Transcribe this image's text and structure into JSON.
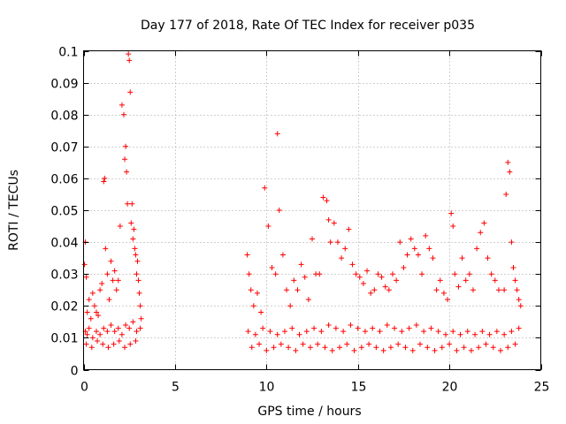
{
  "chart_data": {
    "type": "scatter",
    "title": "Day 177 of 2018, Rate Of TEC Index for receiver p035",
    "xlabel": "GPS time / hours",
    "ylabel": "ROTI / TECUs",
    "xlim": [
      0,
      25
    ],
    "ylim": [
      0,
      0.1
    ],
    "x_ticks": [
      0,
      5,
      10,
      15,
      20,
      25
    ],
    "y_ticks": [
      0,
      0.01,
      0.02,
      0.03,
      0.04,
      0.05,
      0.06,
      0.07,
      0.08,
      0.09,
      0.1
    ],
    "x_tick_labels": [
      "0",
      "5",
      "10",
      "15",
      "20",
      "25"
    ],
    "y_tick_labels": [
      "0",
      "0.01",
      "0.02",
      "0.03",
      "0.04",
      "0.05",
      "0.06",
      "0.07",
      "0.08",
      "0.09",
      "0.1"
    ],
    "grid": true,
    "marker": "plus",
    "color": "#ff0000",
    "series": [
      {
        "x": [
          0.05,
          0.1,
          0.15,
          0.2,
          0.3,
          0.4,
          0.5,
          0.6,
          0.7,
          0.8,
          0.9,
          1.0,
          1.1,
          1.15,
          1.2,
          1.3,
          1.4,
          1.5,
          1.6,
          1.7,
          1.8,
          1.9,
          2.0,
          2.1,
          2.2,
          2.25,
          2.3,
          2.35,
          2.4,
          2.45,
          2.5,
          2.55,
          2.6,
          2.65,
          2.7,
          2.75,
          2.8,
          2.85,
          2.9,
          2.95,
          3.0,
          3.05,
          3.1,
          3.15,
          0.1,
          0.2,
          0.3,
          0.5,
          0.7,
          0.9,
          1.1,
          1.3,
          1.5,
          1.7,
          1.9,
          2.1,
          2.3,
          2.5,
          2.7,
          2.9,
          3.1,
          0.15,
          0.45,
          0.75,
          1.05,
          1.35,
          1.65,
          1.95,
          2.25,
          2.55,
          2.85,
          8.95,
          9.05,
          9.15,
          9.3,
          9.5,
          9.7,
          9.9,
          10.1,
          10.3,
          10.5,
          10.6,
          10.7,
          10.9,
          11.1,
          11.3,
          11.5,
          11.7,
          11.9,
          12.1,
          12.3,
          12.5,
          12.7,
          12.9,
          13.1,
          13.3,
          13.4,
          13.5,
          13.7,
          13.9,
          14.1,
          14.3,
          14.5,
          14.7,
          14.9,
          15.1,
          15.3,
          15.5,
          15.7,
          15.9,
          16.1,
          16.3,
          16.5,
          16.7,
          16.9,
          17.1,
          17.3,
          17.5,
          17.7,
          17.9,
          18.1,
          18.3,
          18.5,
          18.7,
          18.9,
          19.1,
          19.3,
          19.5,
          19.7,
          19.9,
          20.1,
          20.2,
          20.3,
          20.5,
          20.7,
          20.9,
          21.1,
          21.3,
          21.5,
          21.7,
          21.9,
          22.1,
          22.3,
          22.5,
          22.7,
          23.0,
          23.1,
          23.2,
          23.3,
          23.4,
          23.5,
          23.6,
          23.7,
          23.8,
          23.9,
          9.0,
          9.4,
          9.8,
          10.2,
          10.6,
          11.0,
          11.4,
          11.8,
          12.2,
          12.6,
          13.0,
          13.4,
          13.8,
          14.2,
          14.6,
          15.0,
          15.4,
          15.8,
          16.2,
          16.6,
          17.0,
          17.4,
          17.8,
          18.2,
          18.6,
          19.0,
          19.4,
          19.8,
          20.2,
          20.6,
          21.0,
          21.4,
          21.8,
          22.2,
          22.6,
          23.0,
          23.4,
          23.8,
          9.2,
          9.6,
          10.0,
          10.4,
          10.8,
          11.2,
          11.6,
          12.0,
          12.4,
          12.8,
          13.2,
          13.6,
          14.0,
          14.4,
          14.8,
          15.2,
          15.6,
          16.0,
          16.4,
          16.8,
          17.2,
          17.6,
          18.0,
          18.4,
          18.8,
          19.2,
          19.6,
          20.0,
          20.4,
          20.8,
          21.2,
          21.6,
          22.0,
          22.4,
          22.8,
          23.2,
          23.6
        ],
        "y": [
          0.033,
          0.04,
          0.029,
          0.018,
          0.022,
          0.016,
          0.024,
          0.02,
          0.018,
          0.017,
          0.025,
          0.027,
          0.059,
          0.06,
          0.038,
          0.03,
          0.022,
          0.034,
          0.028,
          0.031,
          0.025,
          0.028,
          0.045,
          0.083,
          0.08,
          0.066,
          0.07,
          0.062,
          0.052,
          0.099,
          0.097,
          0.087,
          0.046,
          0.052,
          0.041,
          0.044,
          0.038,
          0.036,
          0.03,
          0.034,
          0.028,
          0.024,
          0.02,
          0.016,
          0.012,
          0.011,
          0.013,
          0.01,
          0.012,
          0.011,
          0.013,
          0.012,
          0.014,
          0.012,
          0.013,
          0.011,
          0.014,
          0.013,
          0.015,
          0.012,
          0.013,
          0.008,
          0.007,
          0.009,
          0.008,
          0.007,
          0.008,
          0.009,
          0.007,
          0.008,
          0.009,
          0.036,
          0.03,
          0.025,
          0.02,
          0.024,
          0.018,
          0.057,
          0.045,
          0.032,
          0.03,
          0.074,
          0.05,
          0.036,
          0.025,
          0.02,
          0.028,
          0.025,
          0.033,
          0.029,
          0.022,
          0.041,
          0.03,
          0.03,
          0.054,
          0.053,
          0.047,
          0.04,
          0.046,
          0.04,
          0.035,
          0.038,
          0.044,
          0.033,
          0.03,
          0.029,
          0.027,
          0.031,
          0.024,
          0.025,
          0.03,
          0.029,
          0.026,
          0.025,
          0.03,
          0.028,
          0.04,
          0.032,
          0.036,
          0.041,
          0.038,
          0.036,
          0.03,
          0.042,
          0.038,
          0.035,
          0.025,
          0.028,
          0.024,
          0.022,
          0.049,
          0.045,
          0.03,
          0.026,
          0.035,
          0.028,
          0.03,
          0.025,
          0.038,
          0.043,
          0.046,
          0.035,
          0.03,
          0.028,
          0.025,
          0.025,
          0.055,
          0.065,
          0.062,
          0.04,
          0.032,
          0.028,
          0.025,
          0.022,
          0.02,
          0.012,
          0.011,
          0.013,
          0.012,
          0.011,
          0.012,
          0.013,
          0.011,
          0.012,
          0.013,
          0.012,
          0.014,
          0.013,
          0.012,
          0.014,
          0.013,
          0.012,
          0.013,
          0.012,
          0.014,
          0.013,
          0.012,
          0.013,
          0.014,
          0.012,
          0.013,
          0.012,
          0.011,
          0.012,
          0.011,
          0.012,
          0.011,
          0.012,
          0.011,
          0.012,
          0.011,
          0.012,
          0.013,
          0.007,
          0.008,
          0.006,
          0.007,
          0.008,
          0.007,
          0.006,
          0.008,
          0.007,
          0.008,
          0.007,
          0.006,
          0.007,
          0.008,
          0.006,
          0.007,
          0.008,
          0.007,
          0.006,
          0.007,
          0.008,
          0.007,
          0.006,
          0.008,
          0.007,
          0.006,
          0.007,
          0.008,
          0.006,
          0.007,
          0.006,
          0.007,
          0.008,
          0.007,
          0.006,
          0.007,
          0.008
        ]
      }
    ]
  }
}
